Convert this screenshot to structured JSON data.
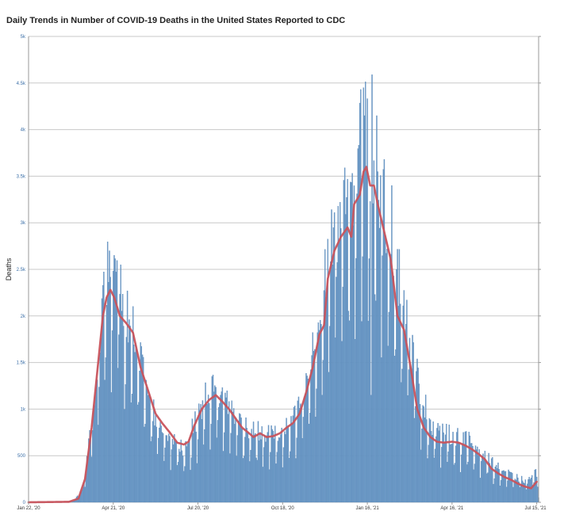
{
  "title": "Daily Trends in Number of COVID-19 Deaths in the United States Reported to CDC",
  "colors": {
    "bar_fill": "#6f9cc8",
    "bar_stroke": "#4f80b3",
    "average_line": "#c8535c",
    "grid": "#c8c8c8",
    "y_tick": "#3b6fa8",
    "x_tick": "#333333"
  },
  "chart_data": {
    "type": "bar",
    "title": "Daily Trends in Number of COVID-19 Deaths in the United States Reported to CDC",
    "xlabel": "",
    "ylabel": "Deaths",
    "x_range": [
      "2020-01-22",
      "2021-07-17"
    ],
    "ylim": [
      0,
      5000
    ],
    "grid": true,
    "y_ticks": [
      {
        "value": 0,
        "label": "0"
      },
      {
        "value": 500,
        "label": "500"
      },
      {
        "value": 1000,
        "label": "1k"
      },
      {
        "value": 1500,
        "label": "1.5k"
      },
      {
        "value": 2000,
        "label": "2k"
      },
      {
        "value": 2500,
        "label": "2.5k"
      },
      {
        "value": 3000,
        "label": "3k"
      },
      {
        "value": 3500,
        "label": "3.5k"
      },
      {
        "value": 4000,
        "label": "4k"
      },
      {
        "value": 4500,
        "label": "4.5k"
      },
      {
        "value": 5000,
        "label": "5k"
      }
    ],
    "x_ticks": [
      {
        "date": "2020-01-22",
        "label": "Jan 22, '20"
      },
      {
        "date": "2020-04-21",
        "label": "Apr 21, '20"
      },
      {
        "date": "2020-07-20",
        "label": "Jul 20, '20"
      },
      {
        "date": "2020-10-18",
        "label": "Oct 18, '20"
      },
      {
        "date": "2021-01-16",
        "label": "Jan 16, '21"
      },
      {
        "date": "2021-04-16",
        "label": "Apr 16, '21"
      },
      {
        "date": "2021-07-15",
        "label": "Jul 15, '21"
      }
    ],
    "series": [
      {
        "type": "bar",
        "description": "daily deaths, estimated anchor points (date, value) of the daily-bar envelope",
        "anchors": [
          [
            "2020-01-22",
            0
          ],
          [
            "2020-03-01",
            5
          ],
          [
            "2020-03-10",
            15
          ],
          [
            "2020-03-20",
            150
          ],
          [
            "2020-03-28",
            900
          ],
          [
            "2020-04-04",
            1500
          ],
          [
            "2020-04-10",
            2200
          ],
          [
            "2020-04-15",
            2500
          ],
          [
            "2020-04-21",
            2600
          ],
          [
            "2020-04-28",
            2300
          ],
          [
            "2020-05-05",
            2100
          ],
          [
            "2020-05-12",
            1900
          ],
          [
            "2020-05-20",
            1600
          ],
          [
            "2020-05-28",
            1200
          ],
          [
            "2020-06-05",
            950
          ],
          [
            "2020-06-12",
            850
          ],
          [
            "2020-06-20",
            750
          ],
          [
            "2020-06-28",
            650
          ],
          [
            "2020-07-05",
            600
          ],
          [
            "2020-07-12",
            750
          ],
          [
            "2020-07-20",
            950
          ],
          [
            "2020-07-27",
            1150
          ],
          [
            "2020-08-03",
            1250
          ],
          [
            "2020-08-10",
            1200
          ],
          [
            "2020-08-17",
            1150
          ],
          [
            "2020-08-24",
            1050
          ],
          [
            "2020-08-31",
            950
          ],
          [
            "2020-09-07",
            850
          ],
          [
            "2020-09-14",
            820
          ],
          [
            "2020-09-21",
            780
          ],
          [
            "2020-09-28",
            760
          ],
          [
            "2020-10-05",
            760
          ],
          [
            "2020-10-12",
            750
          ],
          [
            "2020-10-18",
            780
          ],
          [
            "2020-10-25",
            850
          ],
          [
            "2020-11-01",
            950
          ],
          [
            "2020-11-08",
            1150
          ],
          [
            "2020-11-15",
            1450
          ],
          [
            "2020-11-22",
            1800
          ],
          [
            "2020-11-29",
            2100
          ],
          [
            "2020-12-03",
            2600
          ],
          [
            "2020-12-10",
            2950
          ],
          [
            "2020-12-17",
            3200
          ],
          [
            "2020-12-24",
            3300
          ],
          [
            "2020-12-31",
            3400
          ],
          [
            "2021-01-07",
            3900
          ],
          [
            "2021-01-13",
            4300
          ],
          [
            "2021-01-16",
            4000
          ],
          [
            "2021-01-20",
            3800
          ],
          [
            "2021-01-27",
            3600
          ],
          [
            "2021-02-03",
            3300
          ],
          [
            "2021-02-10",
            3000
          ],
          [
            "2021-02-17",
            2600
          ],
          [
            "2021-02-24",
            2200
          ],
          [
            "2021-03-03",
            1750
          ],
          [
            "2021-03-10",
            1400
          ],
          [
            "2021-03-17",
            1100
          ],
          [
            "2021-03-24",
            900
          ],
          [
            "2021-03-31",
            820
          ],
          [
            "2021-04-07",
            760
          ],
          [
            "2021-04-16",
            740
          ],
          [
            "2021-04-23",
            720
          ],
          [
            "2021-04-30",
            700
          ],
          [
            "2021-05-07",
            660
          ],
          [
            "2021-05-14",
            600
          ],
          [
            "2021-05-21",
            520
          ],
          [
            "2021-05-28",
            450
          ],
          [
            "2021-06-04",
            380
          ],
          [
            "2021-06-11",
            340
          ],
          [
            "2021-06-18",
            300
          ],
          [
            "2021-06-25",
            270
          ],
          [
            "2021-07-02",
            240
          ],
          [
            "2021-07-09",
            280
          ],
          [
            "2021-07-15",
            330
          ],
          [
            "2021-07-17",
            60
          ]
        ],
        "notable_days": [
          [
            "2020-04-17",
            2700
          ],
          [
            "2020-04-22",
            2650
          ],
          [
            "2020-04-29",
            2550
          ],
          [
            "2020-08-04",
            1350
          ],
          [
            "2021-01-12",
            4450
          ],
          [
            "2021-01-13",
            4150
          ],
          [
            "2021-01-21",
            4590
          ],
          [
            "2021-01-20",
            1150
          ],
          [
            "2021-01-26",
            4150
          ],
          [
            "2021-02-11",
            3400
          ]
        ]
      },
      {
        "type": "line",
        "description": "7-day moving average, estimated anchor points (date, value)",
        "anchors": [
          [
            "2020-01-22",
            0
          ],
          [
            "2020-03-05",
            5
          ],
          [
            "2020-03-15",
            40
          ],
          [
            "2020-03-22",
            250
          ],
          [
            "2020-03-29",
            800
          ],
          [
            "2020-04-05",
            1500
          ],
          [
            "2020-04-10",
            2000
          ],
          [
            "2020-04-14",
            2200
          ],
          [
            "2020-04-18",
            2280
          ],
          [
            "2020-04-22",
            2200
          ],
          [
            "2020-04-28",
            2000
          ],
          [
            "2020-05-05",
            1920
          ],
          [
            "2020-05-12",
            1820
          ],
          [
            "2020-05-20",
            1450
          ],
          [
            "2020-05-28",
            1200
          ],
          [
            "2020-06-05",
            950
          ],
          [
            "2020-06-12",
            850
          ],
          [
            "2020-06-20",
            750
          ],
          [
            "2020-06-28",
            640
          ],
          [
            "2020-07-05",
            620
          ],
          [
            "2020-07-10",
            650
          ],
          [
            "2020-07-16",
            820
          ],
          [
            "2020-07-24",
            1000
          ],
          [
            "2020-08-01",
            1100
          ],
          [
            "2020-08-08",
            1150
          ],
          [
            "2020-08-15",
            1080
          ],
          [
            "2020-08-22",
            1000
          ],
          [
            "2020-08-29",
            900
          ],
          [
            "2020-09-05",
            800
          ],
          [
            "2020-09-10",
            760
          ],
          [
            "2020-09-17",
            700
          ],
          [
            "2020-09-24",
            740
          ],
          [
            "2020-10-01",
            700
          ],
          [
            "2020-10-08",
            710
          ],
          [
            "2020-10-15",
            740
          ],
          [
            "2020-10-22",
            800
          ],
          [
            "2020-10-29",
            850
          ],
          [
            "2020-11-05",
            950
          ],
          [
            "2020-11-12",
            1180
          ],
          [
            "2020-11-19",
            1450
          ],
          [
            "2020-11-26",
            1800
          ],
          [
            "2020-12-01",
            1900
          ],
          [
            "2020-12-05",
            2400
          ],
          [
            "2020-12-12",
            2700
          ],
          [
            "2020-12-19",
            2850
          ],
          [
            "2020-12-26",
            2950
          ],
          [
            "2020-12-30",
            2850
          ],
          [
            "2021-01-02",
            3200
          ],
          [
            "2021-01-08",
            3300
          ],
          [
            "2021-01-12",
            3550
          ],
          [
            "2021-01-15",
            3600
          ],
          [
            "2021-01-19",
            3400
          ],
          [
            "2021-01-23",
            3400
          ],
          [
            "2021-01-27",
            3200
          ],
          [
            "2021-02-03",
            2900
          ],
          [
            "2021-02-10",
            2600
          ],
          [
            "2021-02-17",
            2000
          ],
          [
            "2021-02-24",
            1850
          ],
          [
            "2021-03-03",
            1450
          ],
          [
            "2021-03-10",
            1000
          ],
          [
            "2021-03-17",
            800
          ],
          [
            "2021-03-24",
            700
          ],
          [
            "2021-03-31",
            650
          ],
          [
            "2021-04-07",
            640
          ],
          [
            "2021-04-16",
            650
          ],
          [
            "2021-04-23",
            640
          ],
          [
            "2021-04-30",
            610
          ],
          [
            "2021-05-07",
            570
          ],
          [
            "2021-05-14",
            520
          ],
          [
            "2021-05-21",
            460
          ],
          [
            "2021-05-28",
            360
          ],
          [
            "2021-06-04",
            310
          ],
          [
            "2021-06-11",
            270
          ],
          [
            "2021-06-18",
            240
          ],
          [
            "2021-06-25",
            200
          ],
          [
            "2021-07-02",
            170
          ],
          [
            "2021-07-09",
            150
          ],
          [
            "2021-07-15",
            220
          ]
        ]
      }
    ]
  }
}
